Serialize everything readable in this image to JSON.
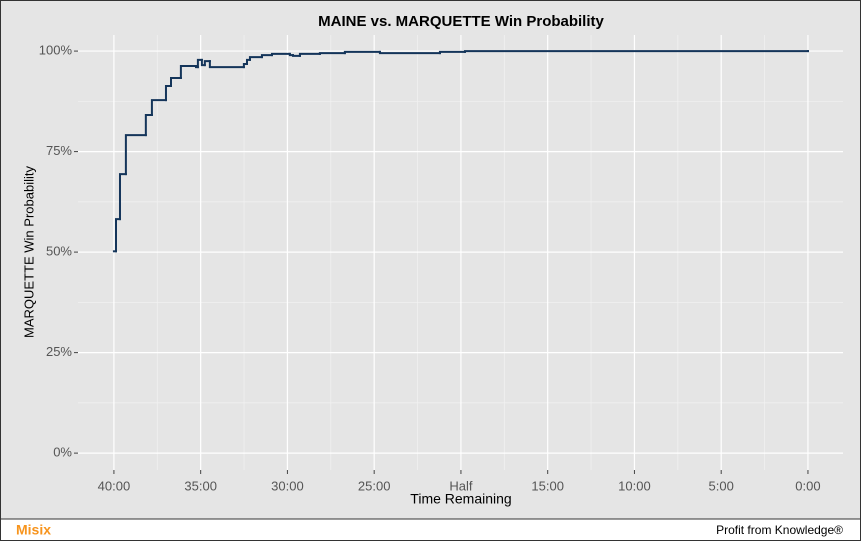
{
  "chart_data": {
    "type": "step",
    "title": "MAINE vs. MARQUETTE Win Probability",
    "x_label": "Time Remaining",
    "y_label": "MARQUETTE Win Probability",
    "xlim": [
      42.07,
      -2.02
    ],
    "ylim": [
      -4.2,
      104
    ],
    "xticks": [
      {
        "value": 40,
        "label": "40:00"
      },
      {
        "value": 35,
        "label": "35:00"
      },
      {
        "value": 30,
        "label": "30:00"
      },
      {
        "value": 25,
        "label": "25:00"
      },
      {
        "value": 20,
        "label": "Half"
      },
      {
        "value": 15,
        "label": "15:00"
      },
      {
        "value": 10,
        "label": "10:00"
      },
      {
        "value": 5,
        "label": "5:00"
      },
      {
        "value": 0,
        "label": "0:00"
      }
    ],
    "yticks": [
      {
        "value": 0,
        "label": "0%"
      },
      {
        "value": 25,
        "label": "25%"
      },
      {
        "value": 50,
        "label": "50%"
      },
      {
        "value": 75,
        "label": "75%"
      },
      {
        "value": 100,
        "label": "100%"
      }
    ],
    "x_minor_ticks": [
      37.5,
      32.5,
      27.5,
      22.5,
      17.5,
      12.5,
      7.5,
      2.5
    ],
    "y_minor_ticks": [
      12.5,
      37.5,
      62.5,
      87.5
    ],
    "grid": true,
    "x": [
      40.0,
      39.88,
      39.65,
      39.31,
      38.16,
      37.81,
      37.0,
      36.71,
      36.14,
      35.27,
      35.16,
      34.93,
      34.76,
      34.47,
      32.51,
      32.33,
      32.16,
      31.47,
      30.89,
      29.86,
      29.68,
      29.28,
      28.13,
      26.69,
      24.67,
      21.21,
      19.77,
      0
    ],
    "series": [
      {
        "name": "MARQUETTE",
        "color": "#14355a",
        "values": [
          50.2,
          58.2,
          69.4,
          79.1,
          84.1,
          87.8,
          91.3,
          93.3,
          96.3,
          96.0,
          97.8,
          96.5,
          97.5,
          96.0,
          96.8,
          97.8,
          98.5,
          99.0,
          99.3,
          99.0,
          98.8,
          99.3,
          99.5,
          99.8,
          99.5,
          99.8,
          100,
          100
        ]
      }
    ]
  },
  "footer": {
    "brand": "Misix",
    "tagline": "Profit from Knowledge®"
  }
}
